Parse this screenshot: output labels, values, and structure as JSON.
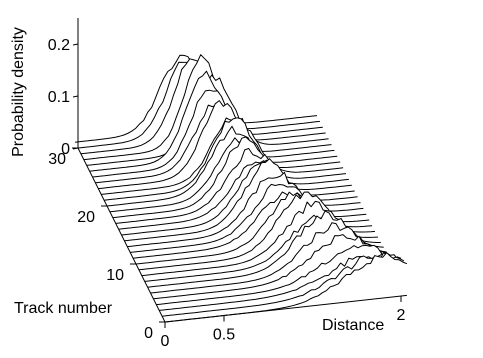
{
  "chart_data": {
    "type": "line",
    "subtype": "waterfall-3d",
    "zlabel": "Probability density",
    "ylabel": "Track number",
    "xlabel": "Distance",
    "z_ticks": [
      "0",
      "0.1",
      "0.2"
    ],
    "y_ticks": [
      "0",
      "10",
      "20",
      "30"
    ],
    "x_ticks": [
      "0",
      "0.5",
      "2"
    ],
    "zlim": [
      0,
      0.25
    ],
    "ylim": [
      0,
      30
    ],
    "series_style": {
      "stroke": "#000000",
      "fill": "#ffffff"
    },
    "tracks": [
      {
        "track": 0,
        "peak_x": 1.85,
        "peak_y": 0.08,
        "width": 0.32
      },
      {
        "track": 1,
        "peak_x": 1.82,
        "peak_y": 0.07,
        "width": 0.33
      },
      {
        "track": 2,
        "peak_x": 1.78,
        "peak_y": 0.06,
        "width": 0.34
      },
      {
        "track": 3,
        "peak_x": 1.7,
        "peak_y": 0.07,
        "width": 0.3
      },
      {
        "track": 4,
        "peak_x": 1.62,
        "peak_y": 0.08,
        "width": 0.28
      },
      {
        "track": 5,
        "peak_x": 1.55,
        "peak_y": 0.09,
        "width": 0.25
      },
      {
        "track": 6,
        "peak_x": 1.5,
        "peak_y": 0.1,
        "width": 0.24
      },
      {
        "track": 7,
        "peak_x": 1.48,
        "peak_y": 0.09,
        "width": 0.24
      },
      {
        "track": 8,
        "peak_x": 1.45,
        "peak_y": 0.1,
        "width": 0.23
      },
      {
        "track": 9,
        "peak_x": 1.4,
        "peak_y": 0.11,
        "width": 0.22
      },
      {
        "track": 10,
        "peak_x": 1.35,
        "peak_y": 0.1,
        "width": 0.22
      },
      {
        "track": 11,
        "peak_x": 1.3,
        "peak_y": 0.09,
        "width": 0.23
      },
      {
        "track": 12,
        "peak_x": 1.28,
        "peak_y": 0.1,
        "width": 0.22
      },
      {
        "track": 13,
        "peak_x": 1.25,
        "peak_y": 0.11,
        "width": 0.21
      },
      {
        "track": 14,
        "peak_x": 1.22,
        "peak_y": 0.12,
        "width": 0.2
      },
      {
        "track": 15,
        "peak_x": 1.2,
        "peak_y": 0.11,
        "width": 0.2
      },
      {
        "track": 16,
        "peak_x": 1.18,
        "peak_y": 0.1,
        "width": 0.21
      },
      {
        "track": 17,
        "peak_x": 1.15,
        "peak_y": 0.11,
        "width": 0.2
      },
      {
        "track": 18,
        "peak_x": 1.12,
        "peak_y": 0.12,
        "width": 0.19
      },
      {
        "track": 19,
        "peak_x": 1.1,
        "peak_y": 0.11,
        "width": 0.19
      },
      {
        "track": 20,
        "peak_x": 1.08,
        "peak_y": 0.12,
        "width": 0.19
      },
      {
        "track": 21,
        "peak_x": 1.1,
        "peak_y": 0.13,
        "width": 0.18
      },
      {
        "track": 22,
        "peak_x": 1.12,
        "peak_y": 0.12,
        "width": 0.18
      },
      {
        "track": 23,
        "peak_x": 1.05,
        "peak_y": 0.14,
        "width": 0.17
      },
      {
        "track": 24,
        "peak_x": 1.02,
        "peak_y": 0.13,
        "width": 0.17
      },
      {
        "track": 25,
        "peak_x": 1.0,
        "peak_y": 0.15,
        "width": 0.16
      },
      {
        "track": 26,
        "peak_x": 0.98,
        "peak_y": 0.16,
        "width": 0.16
      },
      {
        "track": 27,
        "peak_x": 1.08,
        "peak_y": 0.14,
        "width": 0.16
      },
      {
        "track": 28,
        "peak_x": 1.0,
        "peak_y": 0.17,
        "width": 0.15
      },
      {
        "track": 29,
        "peak_x": 0.95,
        "peak_y": 0.16,
        "width": 0.16
      },
      {
        "track": 30,
        "peak_x": 0.92,
        "peak_y": 0.15,
        "width": 0.17
      },
      {
        "track": 31,
        "peak_x": 0.9,
        "peak_y": 0.14,
        "width": 0.18
      }
    ]
  }
}
